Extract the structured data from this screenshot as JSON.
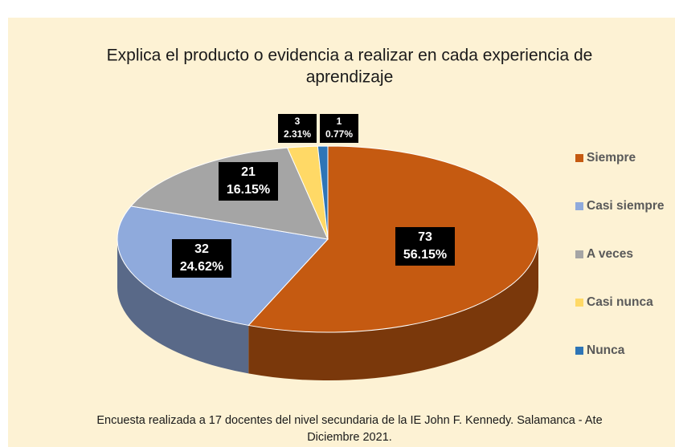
{
  "chart_data": {
    "type": "pie3d",
    "title": [
      "Explica el producto o evidencia a realizar en cada experiencia de",
      "aprendizaje"
    ],
    "categories": [
      "Siempre",
      "Casi siempre",
      "A veces",
      "Casi nunca",
      "Nunca"
    ],
    "values": [
      73,
      32,
      21,
      3,
      1
    ],
    "percent_labels": [
      "56.15%",
      "24.62%",
      "16.15%",
      "2.31%",
      "0.77%"
    ],
    "colors": [
      "#c55a11",
      "#8faadc",
      "#a5a5a5",
      "#ffd966",
      "#2e75b6"
    ],
    "legend": "right",
    "source": [
      "Encuesta realizada a 17 docentes del nivel secundaria de la IE John F. Kennedy. Salamanca - Ate",
      "Diciembre 2021."
    ]
  }
}
